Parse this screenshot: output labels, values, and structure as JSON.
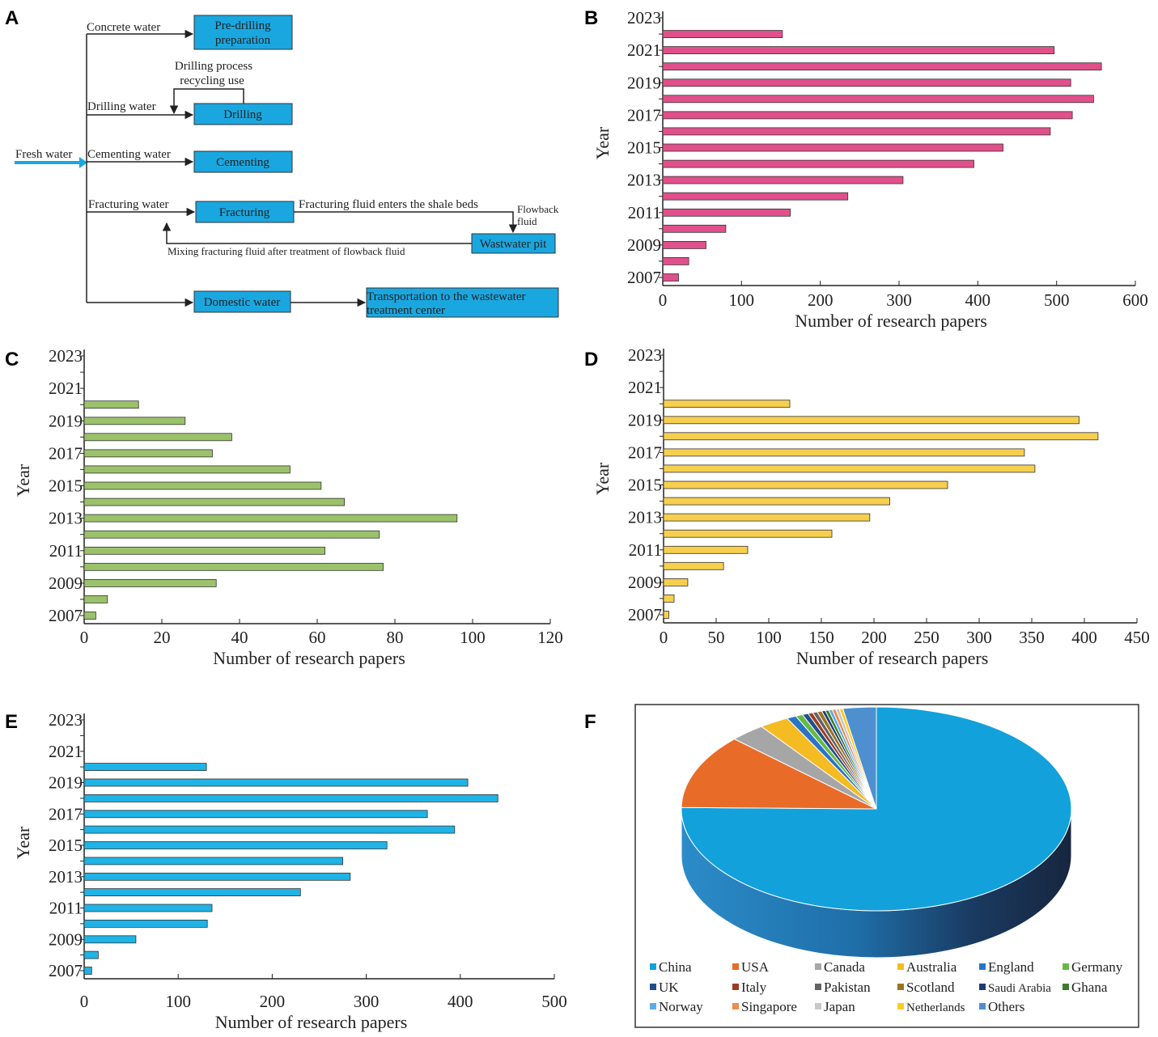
{
  "panels": {
    "A": "A",
    "B": "B",
    "C": "C",
    "D": "D",
    "E": "E",
    "F": "F"
  },
  "flow": {
    "fresh_water": "Fresh water",
    "concrete_water": "Concrete water",
    "predrilling_line1": "Pre-drilling",
    "predrilling_line2": "preparation",
    "recycle_line1": "Drilling process",
    "recycle_line2": "recycling use",
    "drilling_water": "Drilling water",
    "drilling": "Drilling",
    "cementing_water": "Cementing water",
    "cementing": "Cementing",
    "fracturing_water": "Fracturing water",
    "fracturing": "Fracturing",
    "enters_shale": "Fracturing fluid enters the shale beds",
    "flowback_line1": "Flowback",
    "flowback_line2": "fluid",
    "wastewater_pit": "Wastwater pit",
    "mixing": "Mixing fracturing fluid after treatment of flowback fluid",
    "domestic_water": "Domestic water",
    "transport_line1": "Transportation to the wastewater",
    "transport_line2": "treatment center"
  },
  "colors": {
    "flow_box": "#1aa7e0",
    "B_bar": "#e0508a",
    "C_bar": "#9bc26a",
    "D_bar": "#f7cf4e",
    "E_bar": "#1fb3e6"
  },
  "chart_data": [
    {
      "id": "B",
      "type": "bar",
      "orientation": "horizontal",
      "ylabel": "Year",
      "xlabel": "Number of research papers",
      "categories": [
        "2007",
        "2008",
        "2009",
        "2010",
        "2011",
        "2012",
        "2013",
        "2014",
        "2015",
        "2016",
        "2017",
        "2018",
        "2019",
        "2020",
        "2021",
        "2022",
        "2023"
      ],
      "values": [
        20,
        33,
        55,
        80,
        162,
        235,
        305,
        395,
        432,
        492,
        520,
        547,
        518,
        557,
        497,
        152,
        0
      ],
      "ytick_labels": [
        "2007",
        "2009",
        "2011",
        "2013",
        "2015",
        "2017",
        "2019",
        "2021",
        "2023"
      ],
      "xlim": [
        0,
        600
      ],
      "xticks": [
        0,
        100,
        200,
        300,
        400,
        500,
        600
      ]
    },
    {
      "id": "C",
      "type": "bar",
      "orientation": "horizontal",
      "ylabel": "Year",
      "xlabel": "Number of research papers",
      "categories": [
        "2007",
        "2008",
        "2009",
        "2010",
        "2011",
        "2012",
        "2013",
        "2014",
        "2015",
        "2016",
        "2017",
        "2018",
        "2019",
        "2020",
        "2021",
        "2022",
        "2023"
      ],
      "values": [
        3,
        6,
        34,
        77,
        62,
        76,
        96,
        67,
        61,
        53,
        33,
        38,
        26,
        14,
        0,
        0,
        0
      ],
      "ytick_labels": [
        "2007",
        "2009",
        "2011",
        "2013",
        "2015",
        "2017",
        "2019",
        "2021",
        "2023"
      ],
      "xlim": [
        0,
        120
      ],
      "xticks": [
        0,
        20,
        40,
        60,
        80,
        100,
        120
      ]
    },
    {
      "id": "D",
      "type": "bar",
      "orientation": "horizontal",
      "ylabel": "Year",
      "xlabel": "Number of research papers",
      "categories": [
        "2007",
        "2008",
        "2009",
        "2010",
        "2011",
        "2012",
        "2013",
        "2014",
        "2015",
        "2016",
        "2017",
        "2018",
        "2019",
        "2020",
        "2021",
        "2022",
        "2023"
      ],
      "values": [
        5,
        10,
        23,
        57,
        80,
        160,
        196,
        215,
        270,
        353,
        343,
        413,
        395,
        120,
        0,
        0,
        0
      ],
      "ytick_labels": [
        "2007",
        "2009",
        "2011",
        "2013",
        "2015",
        "2017",
        "2019",
        "2021",
        "2023"
      ],
      "xlim": [
        0,
        450
      ],
      "xticks": [
        0,
        50,
        100,
        150,
        200,
        250,
        300,
        350,
        400,
        450
      ]
    },
    {
      "id": "E",
      "type": "bar",
      "orientation": "horizontal",
      "ylabel": "Year",
      "xlabel": "Number of research papers",
      "categories": [
        "2007",
        "2008",
        "2009",
        "2010",
        "2011",
        "2012",
        "2013",
        "2014",
        "2015",
        "2016",
        "2017",
        "2018",
        "2019",
        "2020",
        "2021",
        "2022",
        "2023"
      ],
      "values": [
        8,
        15,
        55,
        131,
        136,
        230,
        283,
        275,
        322,
        394,
        365,
        440,
        408,
        130,
        0,
        0,
        0
      ],
      "ytick_labels": [
        "2007",
        "2009",
        "2011",
        "2013",
        "2015",
        "2017",
        "2019",
        "2021",
        "2023"
      ],
      "xlim": [
        0,
        500
      ],
      "xticks": [
        0,
        100,
        200,
        300,
        400,
        500
      ]
    },
    {
      "id": "F",
      "type": "pie",
      "slices": [
        {
          "label": "China",
          "value": 76.5,
          "color": "#12a1db"
        },
        {
          "label": "USA",
          "value": 12.0,
          "color": "#e86c28"
        },
        {
          "label": "Canada",
          "value": 3.0,
          "color": "#a6a6a6"
        },
        {
          "label": "Australia",
          "value": 2.5,
          "color": "#f4bb22"
        },
        {
          "label": "England",
          "value": 0.8,
          "color": "#2a74c5"
        },
        {
          "label": "Germany",
          "value": 0.6,
          "color": "#66b947"
        },
        {
          "label": "UK",
          "value": 0.5,
          "color": "#1f4f8c"
        },
        {
          "label": "Italy",
          "value": 0.4,
          "color": "#9c3d20"
        },
        {
          "label": "Pakistan",
          "value": 0.4,
          "color": "#636363"
        },
        {
          "label": "Scotland",
          "value": 0.4,
          "color": "#9b7420"
        },
        {
          "label": "Saudi Arabia",
          "value": 0.3,
          "color": "#1c3a78"
        },
        {
          "label": "Ghana",
          "value": 0.3,
          "color": "#3d7a2b"
        },
        {
          "label": "Norway",
          "value": 0.3,
          "color": "#5aaee6"
        },
        {
          "label": "Singapore",
          "value": 0.3,
          "color": "#f08a4b"
        },
        {
          "label": "Japan",
          "value": 0.3,
          "color": "#c8c8c8"
        },
        {
          "label": "Netherlands",
          "value": 0.3,
          "color": "#ffcc22"
        },
        {
          "label": "Others",
          "value": 2.8,
          "color": "#4e8fcf"
        }
      ]
    }
  ]
}
